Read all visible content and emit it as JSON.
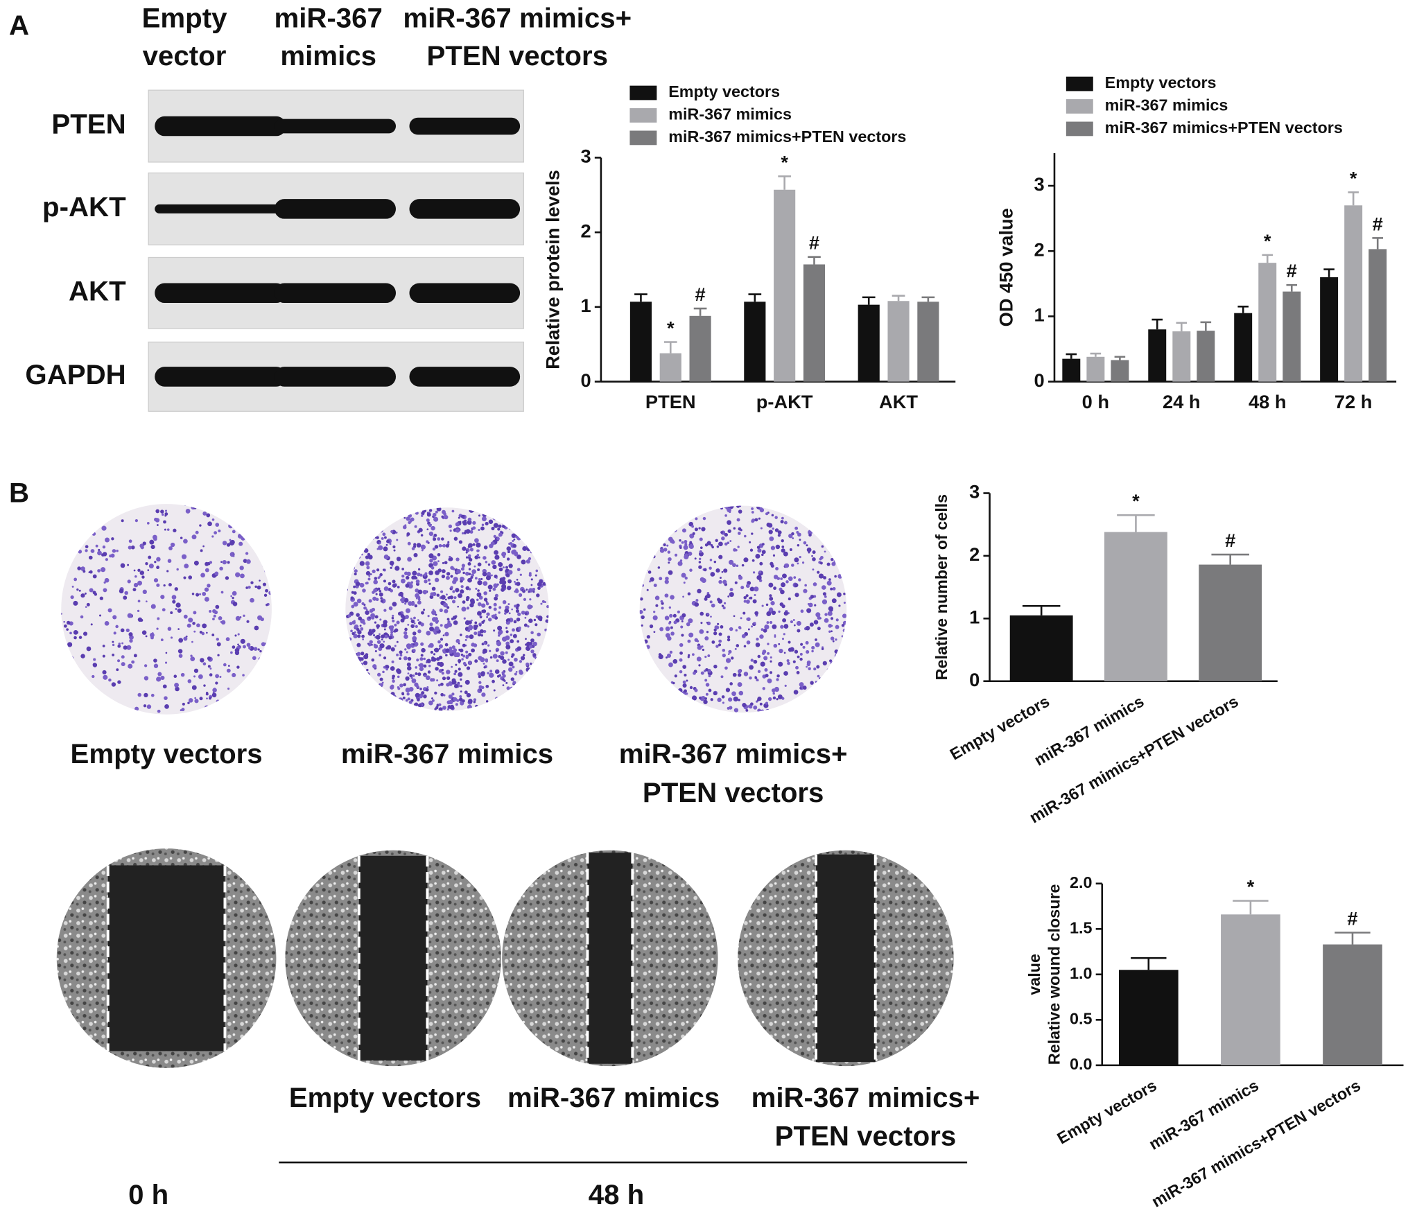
{
  "panel_labels": [
    "A",
    "B"
  ],
  "blot": {
    "columns": [
      [
        "Empty",
        "vector"
      ],
      [
        "miR-367",
        "mimics"
      ],
      [
        "miR-367 mimics+",
        "PTEN vectors"
      ]
    ],
    "rows": [
      "PTEN",
      "p-AKT",
      "AKT",
      "GAPDH"
    ]
  },
  "transwell": {
    "captions": [
      [
        "Empty vectors"
      ],
      [
        "miR-367 mimics"
      ],
      [
        "miR-367 mimics+",
        "PTEN vectors"
      ]
    ]
  },
  "wound": {
    "captions": [
      [
        "Empty vectors"
      ],
      [
        "miR-367 mimics"
      ],
      [
        "miR-367 mimics+",
        "PTEN vectors"
      ]
    ],
    "time_labels": [
      "0 h",
      "48 h"
    ]
  },
  "chart_data": [
    {
      "type": "bar",
      "ylabel": "Relative protein levels",
      "categories": [
        "PTEN",
        "p-AKT",
        "AKT"
      ],
      "series": [
        {
          "name": "Empty vectors",
          "color": "#111111",
          "values": [
            1.07,
            1.07,
            1.03
          ],
          "errors": [
            0.1,
            0.1,
            0.1
          ],
          "significance": [
            null,
            null,
            null
          ]
        },
        {
          "name": "miR-367 mimics",
          "color": "#a9a9ad",
          "values": [
            0.38,
            2.57,
            1.08
          ],
          "errors": [
            0.15,
            0.18,
            0.07
          ],
          "significance": [
            "*",
            "*",
            null
          ]
        },
        {
          "name": "miR-367 mimics+PTEN vectors",
          "color": "#7a7a7c",
          "values": [
            0.88,
            1.57,
            1.07
          ],
          "errors": [
            0.1,
            0.1,
            0.06
          ],
          "significance": [
            "#",
            "#",
            null
          ]
        }
      ],
      "ylim": [
        0,
        3
      ],
      "yticks": [
        0,
        1,
        2,
        3
      ]
    },
    {
      "type": "bar",
      "ylabel": "OD 450 value",
      "categories": [
        "0 h",
        "24 h",
        "48 h",
        "72 h"
      ],
      "series": [
        {
          "name": "Empty vectors",
          "color": "#111111",
          "values": [
            0.35,
            0.8,
            1.05,
            1.6
          ],
          "errors": [
            0.07,
            0.15,
            0.1,
            0.12
          ],
          "significance": [
            null,
            null,
            null,
            null
          ]
        },
        {
          "name": "miR-367 mimics",
          "color": "#a9a9ad",
          "values": [
            0.38,
            0.77,
            1.82,
            2.7
          ],
          "errors": [
            0.05,
            0.13,
            0.12,
            0.2
          ],
          "significance": [
            null,
            null,
            "*",
            "*"
          ]
        },
        {
          "name": "miR-367 mimics+PTEN vectors",
          "color": "#7a7a7c",
          "values": [
            0.33,
            0.78,
            1.38,
            2.03
          ],
          "errors": [
            0.05,
            0.13,
            0.1,
            0.17
          ],
          "significance": [
            null,
            null,
            "#",
            "#"
          ]
        }
      ],
      "ylim": [
        0,
        3.5
      ],
      "yticks": [
        0,
        1,
        2,
        3
      ]
    },
    {
      "type": "bar",
      "ylabel": "Relative number of cells",
      "categories": [
        "Empty vectors",
        "miR-367 mimics",
        "miR-367 mimics+PTEN vectors"
      ],
      "values": [
        1.05,
        2.38,
        1.86
      ],
      "errors": [
        0.15,
        0.27,
        0.16
      ],
      "colors": [
        "#111111",
        "#a9a9ad",
        "#7a7a7c"
      ],
      "significance": [
        null,
        "*",
        "#"
      ],
      "ylim": [
        0,
        3
      ],
      "yticks": [
        0,
        1,
        2,
        3
      ]
    },
    {
      "type": "bar",
      "ylabel": [
        "Relative wound closure",
        "value"
      ],
      "categories": [
        "Empty vectors",
        "miR-367 mimics",
        "miR-367 mimics+PTEN vectors"
      ],
      "values": [
        1.05,
        1.66,
        1.33
      ],
      "errors": [
        0.13,
        0.15,
        0.13
      ],
      "colors": [
        "#111111",
        "#a9a9ad",
        "#7a7a7c"
      ],
      "significance": [
        null,
        "*",
        "#"
      ],
      "ylim": [
        0,
        2.0
      ],
      "yticks": [
        {
          "value": 0,
          "label": "0.0"
        },
        {
          "value": 0.5,
          "label": "0.5"
        },
        {
          "value": 1,
          "label": "1.0"
        },
        {
          "value": 1.5,
          "label": "1.5"
        },
        {
          "value": 2,
          "label": "2.0"
        }
      ]
    }
  ]
}
